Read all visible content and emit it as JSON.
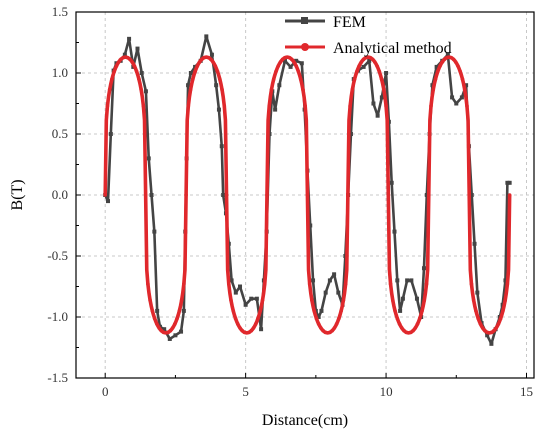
{
  "chart_data": {
    "type": "line",
    "title": "",
    "xlabel": "Distance(cm)",
    "ylabel": "B(T)",
    "xlim": [
      -0.5,
      15
    ],
    "ylim": [
      -1.5,
      1.5
    ],
    "x_ticks": [
      0,
      5,
      10,
      15
    ],
    "y_ticks": [
      1.5,
      1.0,
      0.5,
      0.0,
      -0.5,
      -1.0,
      -1.5
    ],
    "x_tick_labels": [
      "0",
      "5",
      "10",
      "15"
    ],
    "y_tick_labels": [
      "1.5",
      "1.0",
      "0.5",
      "0.0",
      "-0.5",
      "-1.0",
      "-1.5"
    ],
    "grid": true,
    "legend_position": "top-right",
    "series": [
      {
        "name": "FEM",
        "color": "#444444",
        "marker": "square",
        "points": [
          [
            0.0,
            0.0
          ],
          [
            0.1,
            -0.05
          ],
          [
            0.2,
            0.5
          ],
          [
            0.3,
            1.02
          ],
          [
            0.4,
            1.08
          ],
          [
            0.55,
            1.1
          ],
          [
            0.7,
            1.15
          ],
          [
            0.85,
            1.28
          ],
          [
            1.0,
            1.05
          ],
          [
            1.15,
            1.2
          ],
          [
            1.3,
            1.0
          ],
          [
            1.45,
            0.85
          ],
          [
            1.55,
            0.3
          ],
          [
            1.65,
            0.0
          ],
          [
            1.75,
            -0.3
          ],
          [
            1.85,
            -0.95
          ],
          [
            1.95,
            -1.08
          ],
          [
            2.1,
            -1.1
          ],
          [
            2.3,
            -1.18
          ],
          [
            2.5,
            -1.15
          ],
          [
            2.7,
            -1.12
          ],
          [
            2.8,
            -0.95
          ],
          [
            2.85,
            -0.3
          ],
          [
            2.9,
            0.3
          ],
          [
            2.95,
            0.9
          ],
          [
            3.05,
            1.0
          ],
          [
            3.2,
            1.05
          ],
          [
            3.4,
            1.1
          ],
          [
            3.6,
            1.3
          ],
          [
            3.8,
            1.15
          ],
          [
            3.95,
            0.9
          ],
          [
            4.05,
            0.7
          ],
          [
            4.15,
            0.4
          ],
          [
            4.2,
            0.0
          ],
          [
            4.3,
            -0.15
          ],
          [
            4.4,
            -0.4
          ],
          [
            4.5,
            -0.7
          ],
          [
            4.65,
            -0.8
          ],
          [
            4.8,
            -0.75
          ],
          [
            5.0,
            -0.9
          ],
          [
            5.2,
            -0.85
          ],
          [
            5.4,
            -0.85
          ],
          [
            5.55,
            -1.1
          ],
          [
            5.65,
            -0.7
          ],
          [
            5.75,
            -0.3
          ],
          [
            5.85,
            0.5
          ],
          [
            5.95,
            0.85
          ],
          [
            6.05,
            0.7
          ],
          [
            6.2,
            0.9
          ],
          [
            6.4,
            1.1
          ],
          [
            6.6,
            1.05
          ],
          [
            6.8,
            1.1
          ],
          [
            7.0,
            1.08
          ],
          [
            7.1,
            0.7
          ],
          [
            7.2,
            0.2
          ],
          [
            7.3,
            -0.25
          ],
          [
            7.4,
            -0.7
          ],
          [
            7.5,
            -0.95
          ],
          [
            7.6,
            -1.0
          ],
          [
            7.7,
            -0.95
          ],
          [
            7.85,
            -0.8
          ],
          [
            8.0,
            -0.7
          ],
          [
            8.15,
            -0.65
          ],
          [
            8.3,
            -0.8
          ],
          [
            8.45,
            -0.9
          ],
          [
            8.55,
            -0.5
          ],
          [
            8.65,
            0.0
          ],
          [
            8.75,
            0.5
          ],
          [
            8.85,
            0.95
          ],
          [
            9.0,
            1.02
          ],
          [
            9.2,
            1.05
          ],
          [
            9.4,
            1.1
          ],
          [
            9.55,
            0.75
          ],
          [
            9.7,
            0.65
          ],
          [
            9.85,
            0.8
          ],
          [
            10.0,
            1.0
          ],
          [
            10.1,
            0.6
          ],
          [
            10.2,
            0.1
          ],
          [
            10.3,
            -0.3
          ],
          [
            10.4,
            -0.7
          ],
          [
            10.5,
            -0.95
          ],
          [
            10.6,
            -0.85
          ],
          [
            10.75,
            -0.7
          ],
          [
            10.9,
            -0.7
          ],
          [
            11.1,
            -0.85
          ],
          [
            11.25,
            -1.0
          ],
          [
            11.35,
            -0.6
          ],
          [
            11.45,
            0.0
          ],
          [
            11.55,
            0.5
          ],
          [
            11.65,
            0.9
          ],
          [
            11.8,
            1.05
          ],
          [
            12.0,
            1.1
          ],
          [
            12.2,
            1.15
          ],
          [
            12.35,
            0.8
          ],
          [
            12.5,
            0.75
          ],
          [
            12.7,
            0.8
          ],
          [
            12.85,
            0.9
          ],
          [
            12.95,
            0.4
          ],
          [
            13.05,
            0.0
          ],
          [
            13.15,
            -0.4
          ],
          [
            13.25,
            -0.8
          ],
          [
            13.4,
            -1.05
          ],
          [
            13.6,
            -1.15
          ],
          [
            13.75,
            -1.22
          ],
          [
            13.9,
            -1.1
          ],
          [
            14.05,
            -1.0
          ],
          [
            14.15,
            -0.9
          ],
          [
            14.25,
            -0.7
          ],
          [
            14.32,
            0.1
          ],
          [
            14.4,
            0.1
          ]
        ]
      },
      {
        "name": "Analytical method",
        "color": "#e0282c",
        "marker": "circle",
        "period": 2.88,
        "peak": 1.13,
        "x_range": [
          0,
          14.4
        ]
      }
    ]
  }
}
